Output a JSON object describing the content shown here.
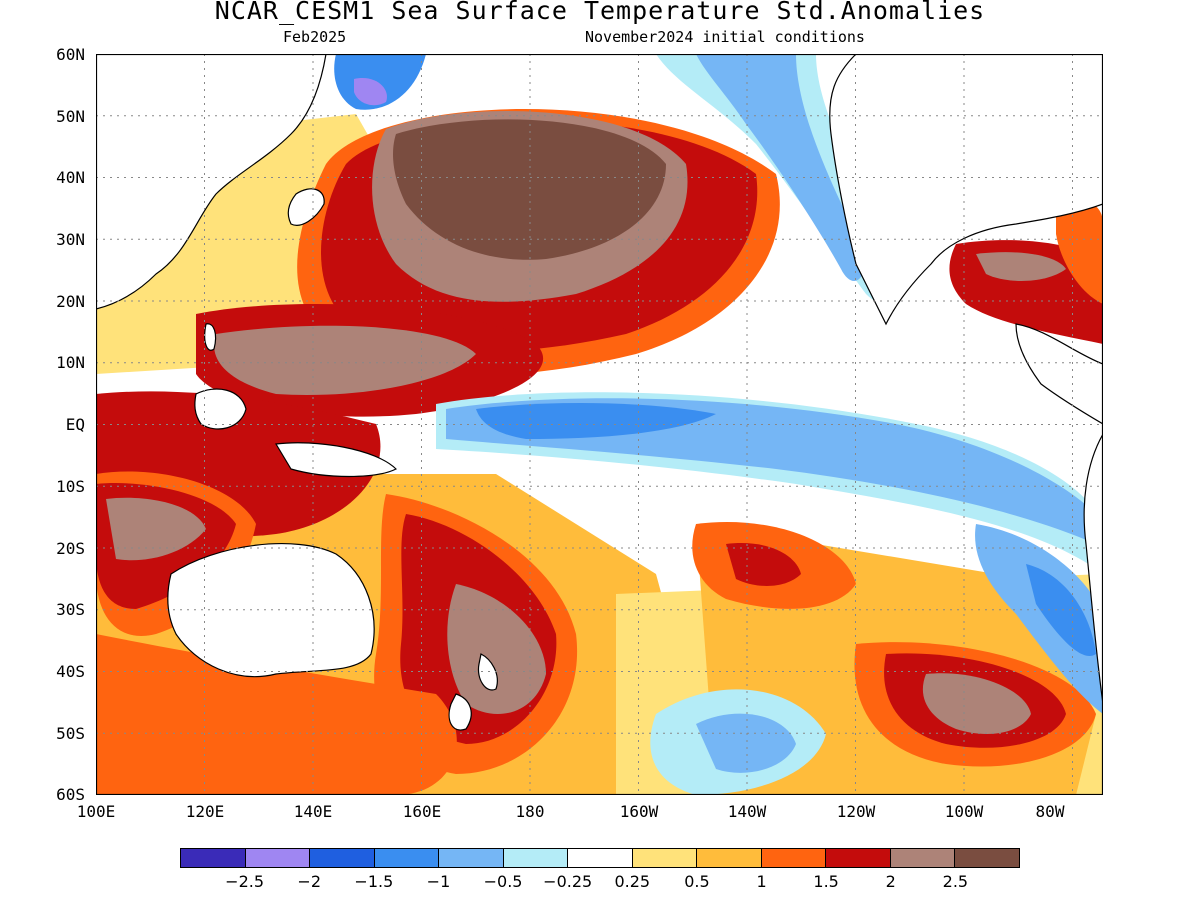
{
  "title": "NCAR_CESM1 Sea Surface Temperature Std.Anomalies",
  "subtitle_left": "Feb2025",
  "subtitle_right": "November2024 initial conditions",
  "lat_labels": [
    "60N",
    "50N",
    "40N",
    "30N",
    "20N",
    "10N",
    "EQ",
    "10S",
    "20S",
    "30S",
    "40S",
    "50S",
    "60S"
  ],
  "lon_labels": [
    "100E",
    "120E",
    "140E",
    "160E",
    "180",
    "160W",
    "140W",
    "120W",
    "100W",
    "80W"
  ],
  "colorbar": {
    "colors": [
      "#3a2bb8",
      "#9f86f2",
      "#1f5fe0",
      "#3a8ef0",
      "#75b6f5",
      "#b4ecf7",
      "#ffffff",
      "#ffe27a",
      "#ffbc3b",
      "#ff6410",
      "#c40c0c",
      "#ad8378",
      "#7a4d40"
    ],
    "labels": [
      "−2.5",
      "−2",
      "−1.5",
      "−1",
      "−0.5",
      "−0.25",
      "0.25",
      "0.5",
      "1",
      "1.5",
      "2",
      "2.5"
    ]
  }
}
